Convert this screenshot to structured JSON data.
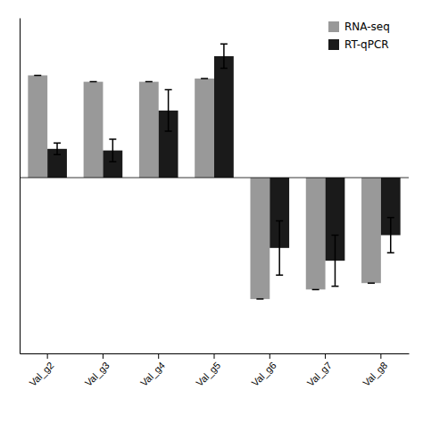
{
  "chart_data": {
    "type": "bar",
    "categories": [
      "Val_g2",
      "Val_g3",
      "Val_g4",
      "Val_g5",
      "Val_g6",
      "Val_g7",
      "Val_g8"
    ],
    "series": [
      {
        "name": "RNA-seq",
        "color": "#999999",
        "values": [
          3.2,
          3.0,
          3.0,
          3.1,
          -3.8,
          -3.5,
          -3.3
        ],
        "errors": [
          0.0,
          0.0,
          0.0,
          0.0,
          0.0,
          0.0,
          0.0
        ]
      },
      {
        "name": "RT-qPCR",
        "color": "#1a1a1a",
        "values": [
          0.9,
          0.85,
          2.1,
          3.8,
          -2.2,
          -2.6,
          -1.8
        ],
        "errors": [
          0.18,
          0.35,
          0.65,
          0.38,
          0.85,
          0.8,
          0.55
        ]
      }
    ],
    "ylim": [
      -5.5,
      5.0
    ],
    "yticks": [],
    "tick_labels": "x",
    "legend": "upper right"
  }
}
